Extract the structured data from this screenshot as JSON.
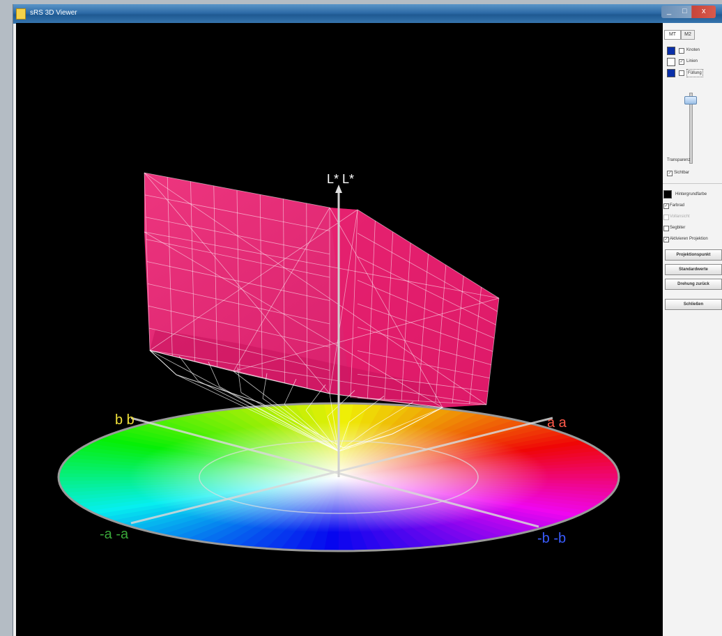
{
  "window": {
    "title": "sRS 3D Viewer",
    "controls": [
      "_",
      "□",
      "x"
    ]
  },
  "panel": {
    "tabs": [
      "MT",
      "M2"
    ],
    "layers": [
      {
        "label": "Knoten",
        "checked": false,
        "swatch": "#0a2fa8"
      },
      {
        "label": "Linien",
        "checked": true,
        "swatch": "#ffffff"
      },
      {
        "label": "Füllung",
        "checked": false,
        "swatch": "#0a2fa8"
      }
    ],
    "transparency_label": "Transparenz",
    "sichtbar_label": "Sichtbar",
    "sichtbar_checked": true,
    "background_label": "Hintergrundfarbe",
    "background_color": "#000000",
    "options": [
      {
        "label": "Farbrad",
        "checked": true,
        "disabled": false
      },
      {
        "label": "Vollansicht",
        "checked": false,
        "disabled": true
      },
      {
        "label": "Segbiter",
        "checked": false,
        "disabled": false
      },
      {
        "label": "Aktivieren Projektion",
        "checked": true,
        "disabled": false
      }
    ],
    "buttons": [
      "Projektionspunkt",
      "Standardwerte",
      "Drehung zurück",
      "Schließen"
    ]
  },
  "axes": {
    "l_label": "L* L*",
    "b_label": "b b",
    "a_label": "a a",
    "neg_a_label": "-a -a",
    "neg_b_label": "-b -b",
    "colors": {
      "l": "#ffffff",
      "b": "#f2e23a",
      "a": "#ff5a4a",
      "neg_a": "#3aa83a",
      "neg_b": "#3a5cff"
    }
  },
  "gamut_color": "#ff2f7f"
}
